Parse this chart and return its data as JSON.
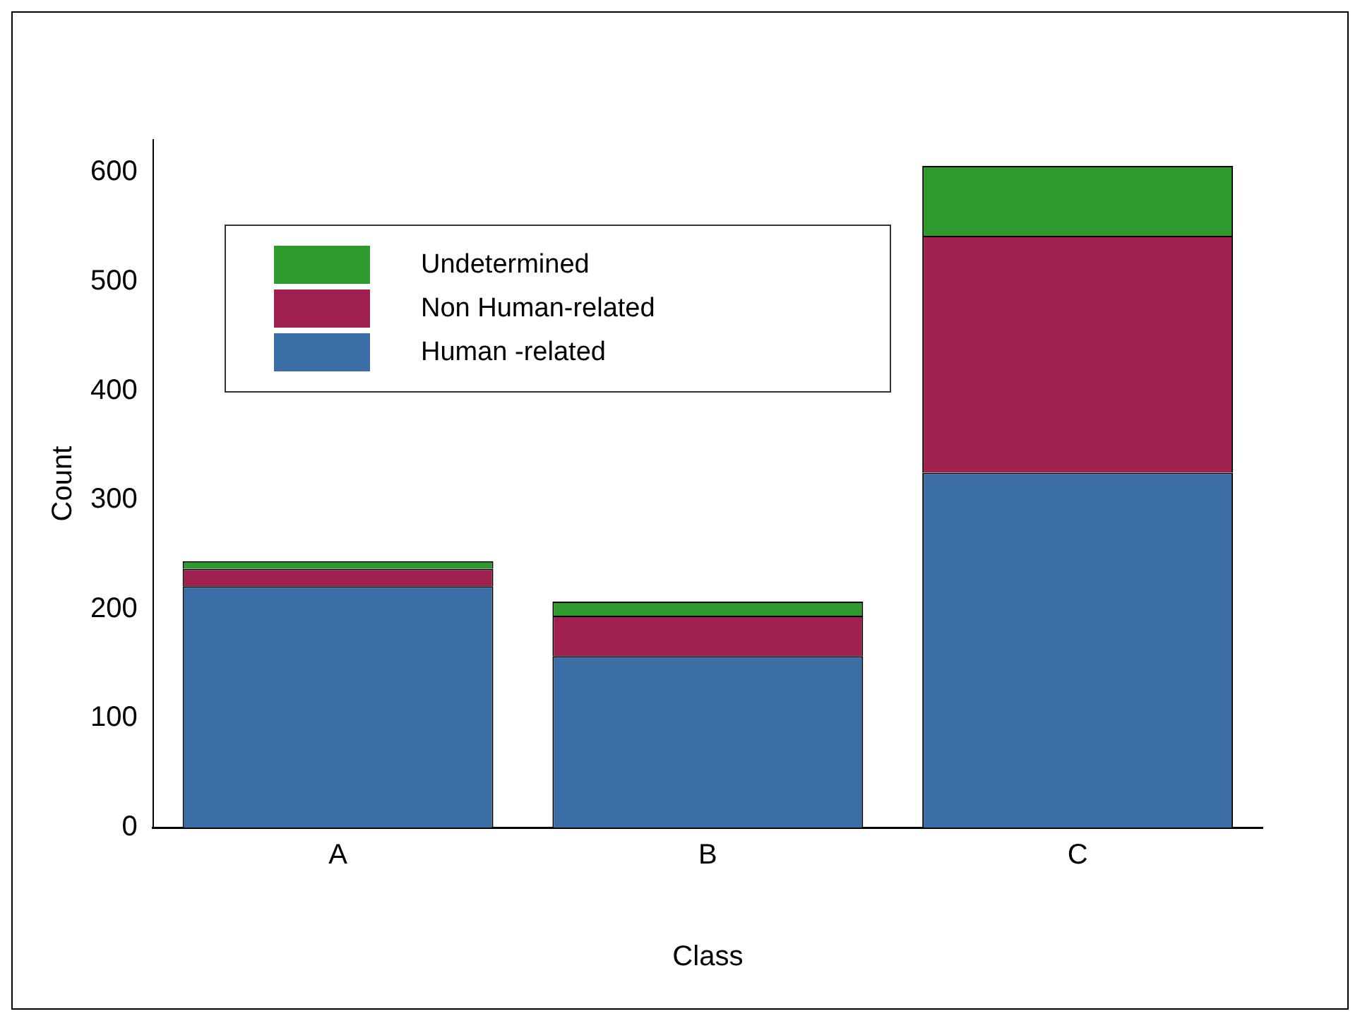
{
  "chart_data": {
    "type": "bar",
    "stacked": true,
    "xlabel": "Class",
    "ylabel": "Count",
    "categories": [
      "A",
      "B",
      "C"
    ],
    "series": [
      {
        "name": "Human -related",
        "color": "#3a6ea5",
        "values": [
          221,
          157,
          325
        ]
      },
      {
        "name": "Non Human-related",
        "color": "#a0204f",
        "values": [
          16,
          37,
          217
        ]
      },
      {
        "name": "Undetermined",
        "color": "#2e9a2e",
        "values": [
          7,
          13,
          64
        ]
      }
    ],
    "ylim": [
      0,
      630
    ],
    "yticks": [
      0,
      100,
      200,
      300,
      400,
      500,
      600
    ],
    "grid": false,
    "legend": "top left"
  }
}
